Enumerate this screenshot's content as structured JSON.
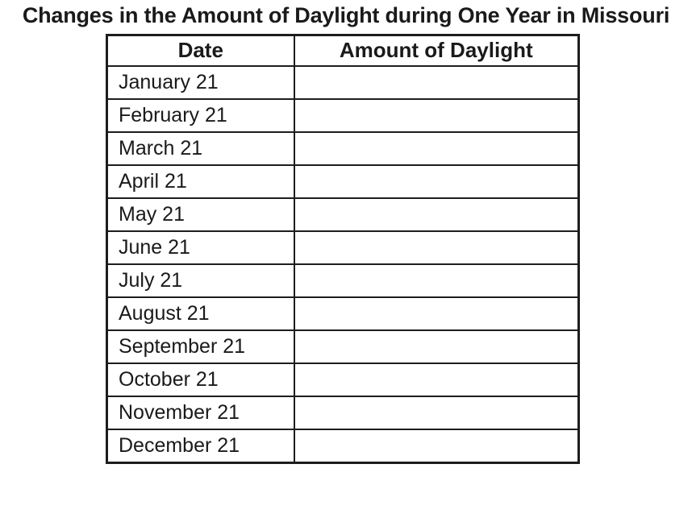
{
  "title": "Changes in the Amount of Daylight during One Year in Missouri",
  "colors": {
    "text": "#1a1a1a",
    "border": "#1d1d1d",
    "background": "#ffffff"
  },
  "table": {
    "headers": [
      "Date",
      "Amount of Daylight"
    ],
    "rows": [
      {
        "date": "January 21",
        "amount": ""
      },
      {
        "date": "February 21",
        "amount": ""
      },
      {
        "date": "March 21",
        "amount": ""
      },
      {
        "date": "April 21",
        "amount": ""
      },
      {
        "date": "May 21",
        "amount": ""
      },
      {
        "date": "June 21",
        "amount": ""
      },
      {
        "date": "July 21",
        "amount": ""
      },
      {
        "date": "August 21",
        "amount": ""
      },
      {
        "date": "September 21",
        "amount": ""
      },
      {
        "date": "October 21",
        "amount": ""
      },
      {
        "date": "November 21",
        "amount": ""
      },
      {
        "date": "December 21",
        "amount": ""
      }
    ]
  }
}
